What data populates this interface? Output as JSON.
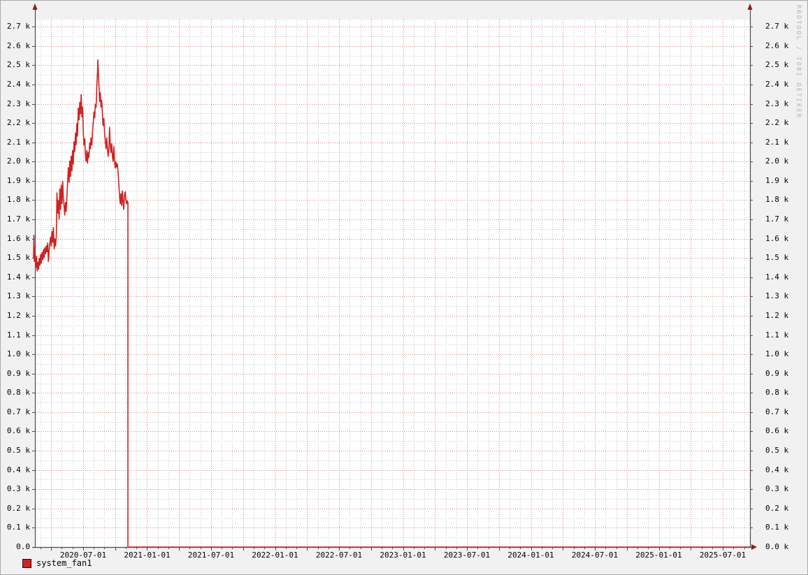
{
  "watermark": "RRDTOOL / TOBI OETIKER",
  "legend": {
    "label": "system_fan1",
    "swatch_color": "#cf2222",
    "swatch_border": "#141414"
  },
  "colors": {
    "page_bg": "#f1f1f1",
    "plot_bg": "#ffffff",
    "axis": "#4a4a4a",
    "arrow": "#8b1a1a",
    "line": "#cf2222",
    "grid_major": "#dd8282",
    "grid_minor": "#c9c9c9"
  },
  "chart_data": {
    "type": "line",
    "title": "",
    "xlabel": "",
    "ylabel": "",
    "legend_position": "bottom-left",
    "grid": true,
    "x_range": [
      2020.123,
      2025.713
    ],
    "y_range": [
      0,
      2737
    ],
    "x_ticks": [
      2020.5,
      2021.0,
      2021.5,
      2022.0,
      2022.5,
      2023.0,
      2023.5,
      2024.0,
      2024.5,
      2025.0,
      2025.5
    ],
    "x_tick_labels": [
      "2020-07-01",
      "2021-01-01",
      "2021-07-01",
      "2022-01-01",
      "2022-07-01",
      "2023-01-01",
      "2023-07-01",
      "2024-01-01",
      "2024-07-01",
      "2025-01-01",
      "2025-07-01"
    ],
    "y_ticks": [
      0,
      100,
      200,
      300,
      400,
      500,
      600,
      700,
      800,
      900,
      1000,
      1100,
      1200,
      1300,
      1400,
      1500,
      1600,
      1700,
      1800,
      1900,
      2000,
      2100,
      2200,
      2300,
      2400,
      2500,
      2600,
      2700
    ],
    "y_tick_labels_left": [
      "0.0",
      "0.1 k",
      "0.2 k",
      "0.3 k",
      "0.4 k",
      "0.5 k",
      "0.6 k",
      "0.7 k",
      "0.8 k",
      "0.9 k",
      "1.0 k",
      "1.1 k",
      "1.2 k",
      "1.3 k",
      "1.4 k",
      "1.5 k",
      "1.6 k",
      "1.7 k",
      "1.8 k",
      "1.9 k",
      "2.0 k",
      "2.1 k",
      "2.2 k",
      "2.3 k",
      "2.4 k",
      "2.5 k",
      "2.6 k",
      "2.7 k"
    ],
    "y_tick_labels_right": [
      "0.0 k",
      "0.1 k",
      "0.2 k",
      "0.3 k",
      "0.4 k",
      "0.5 k",
      "0.6 k",
      "0.7 k",
      "0.8 k",
      "0.9 k",
      "1.0 k",
      "1.1 k",
      "1.2 k",
      "1.3 k",
      "1.4 k",
      "1.5 k",
      "1.6 k",
      "1.7 k",
      "1.8 k",
      "1.9 k",
      "2.0 k",
      "2.1 k",
      "2.2 k",
      "2.3 k",
      "2.4 k",
      "2.5 k",
      "2.6 k",
      "2.7 k"
    ],
    "grid_spec": {
      "x_minor_step_years": 0.0833,
      "x_major_step_years": 0.25,
      "y_minor_step": 50,
      "y_major_step": 100
    },
    "series": [
      {
        "name": "system_fan1",
        "color": "#cf2222",
        "points": [
          [
            2020.112,
            1500
          ],
          [
            2020.115,
            1620
          ],
          [
            2020.118,
            1480
          ],
          [
            2020.123,
            1560
          ],
          [
            2020.129,
            1450
          ],
          [
            2020.134,
            1510
          ],
          [
            2020.14,
            1430
          ],
          [
            2020.145,
            1480
          ],
          [
            2020.151,
            1440
          ],
          [
            2020.156,
            1500
          ],
          [
            2020.162,
            1460
          ],
          [
            2020.167,
            1520
          ],
          [
            2020.173,
            1470
          ],
          [
            2020.178,
            1530
          ],
          [
            2020.184,
            1490
          ],
          [
            2020.189,
            1545
          ],
          [
            2020.195,
            1500
          ],
          [
            2020.2,
            1555
          ],
          [
            2020.206,
            1520
          ],
          [
            2020.212,
            1565
          ],
          [
            2020.217,
            1530
          ],
          [
            2020.223,
            1580
          ],
          [
            2020.228,
            1480
          ],
          [
            2020.234,
            1540
          ],
          [
            2020.24,
            1575
          ],
          [
            2020.245,
            1610
          ],
          [
            2020.251,
            1560
          ],
          [
            2020.256,
            1640
          ],
          [
            2020.262,
            1580
          ],
          [
            2020.267,
            1660
          ],
          [
            2020.273,
            1545
          ],
          [
            2020.278,
            1600
          ],
          [
            2020.284,
            1560
          ],
          [
            2020.29,
            1620
          ],
          [
            2020.295,
            1840
          ],
          [
            2020.301,
            1730
          ],
          [
            2020.306,
            1800
          ],
          [
            2020.312,
            1700
          ],
          [
            2020.317,
            1860
          ],
          [
            2020.323,
            1750
          ],
          [
            2020.328,
            1880
          ],
          [
            2020.334,
            1780
          ],
          [
            2020.34,
            1900
          ],
          [
            2020.345,
            1810
          ],
          [
            2020.351,
            1770
          ],
          [
            2020.356,
            1720
          ],
          [
            2020.362,
            1790
          ],
          [
            2020.367,
            1740
          ],
          [
            2020.373,
            1820
          ],
          [
            2020.379,
            1900
          ],
          [
            2020.384,
            1970
          ],
          [
            2020.39,
            1890
          ],
          [
            2020.395,
            2005
          ],
          [
            2020.401,
            1920
          ],
          [
            2020.406,
            2030
          ],
          [
            2020.412,
            1950
          ],
          [
            2020.417,
            2060
          ],
          [
            2020.423,
            1985
          ],
          [
            2020.429,
            2105
          ],
          [
            2020.434,
            2050
          ],
          [
            2020.44,
            2150
          ],
          [
            2020.445,
            2085
          ],
          [
            2020.451,
            2200
          ],
          [
            2020.456,
            2130
          ],
          [
            2020.462,
            2280
          ],
          [
            2020.468,
            2215
          ],
          [
            2020.473,
            2310
          ],
          [
            2020.479,
            2245
          ],
          [
            2020.484,
            2350
          ],
          [
            2020.49,
            2230
          ],
          [
            2020.495,
            2285
          ],
          [
            2020.501,
            2150
          ],
          [
            2020.506,
            2085
          ],
          [
            2020.512,
            2120
          ],
          [
            2020.517,
            2040
          ],
          [
            2020.523,
            2000
          ],
          [
            2020.529,
            2060
          ],
          [
            2020.534,
            1990
          ],
          [
            2020.54,
            2050
          ],
          [
            2020.545,
            2020
          ],
          [
            2020.551,
            2100
          ],
          [
            2020.556,
            2065
          ],
          [
            2020.562,
            2125
          ],
          [
            2020.568,
            2085
          ],
          [
            2020.573,
            2160
          ],
          [
            2020.579,
            2205
          ],
          [
            2020.584,
            2260
          ],
          [
            2020.59,
            2225
          ],
          [
            2020.595,
            2300
          ],
          [
            2020.601,
            2280
          ],
          [
            2020.606,
            2380
          ],
          [
            2020.612,
            2465
          ],
          [
            2020.615,
            2530
          ],
          [
            2020.618,
            2475
          ],
          [
            2020.623,
            2400
          ],
          [
            2020.629,
            2310
          ],
          [
            2020.634,
            2360
          ],
          [
            2020.64,
            2280
          ],
          [
            2020.645,
            2320
          ],
          [
            2020.651,
            2245
          ],
          [
            2020.656,
            2185
          ],
          [
            2020.662,
            2225
          ],
          [
            2020.668,
            2145
          ],
          [
            2020.673,
            2105
          ],
          [
            2020.679,
            2065
          ],
          [
            2020.684,
            2125
          ],
          [
            2020.69,
            2065
          ],
          [
            2020.695,
            2025
          ],
          [
            2020.701,
            2065
          ],
          [
            2020.706,
            2180
          ],
          [
            2020.712,
            2085
          ],
          [
            2020.717,
            2045
          ],
          [
            2020.723,
            2095
          ],
          [
            2020.729,
            2025
          ],
          [
            2020.734,
            2000
          ],
          [
            2020.74,
            2080
          ],
          [
            2020.745,
            2005
          ],
          [
            2020.751,
            1965
          ],
          [
            2020.756,
            2000
          ],
          [
            2020.762,
            1970
          ],
          [
            2020.767,
            1990
          ],
          [
            2020.773,
            1940
          ],
          [
            2020.779,
            1880
          ],
          [
            2020.784,
            1820
          ],
          [
            2020.79,
            1780
          ],
          [
            2020.795,
            1835
          ],
          [
            2020.801,
            1770
          ],
          [
            2020.806,
            1850
          ],
          [
            2020.812,
            1790
          ],
          [
            2020.817,
            1750
          ],
          [
            2020.823,
            1825
          ],
          [
            2020.829,
            1845
          ],
          [
            2020.834,
            1800
          ],
          [
            2020.84,
            1780
          ],
          [
            2020.845,
            1795
          ],
          [
            2020.85,
            1790
          ],
          [
            2020.85,
            0
          ],
          [
            2025.713,
            0
          ]
        ]
      }
    ]
  }
}
